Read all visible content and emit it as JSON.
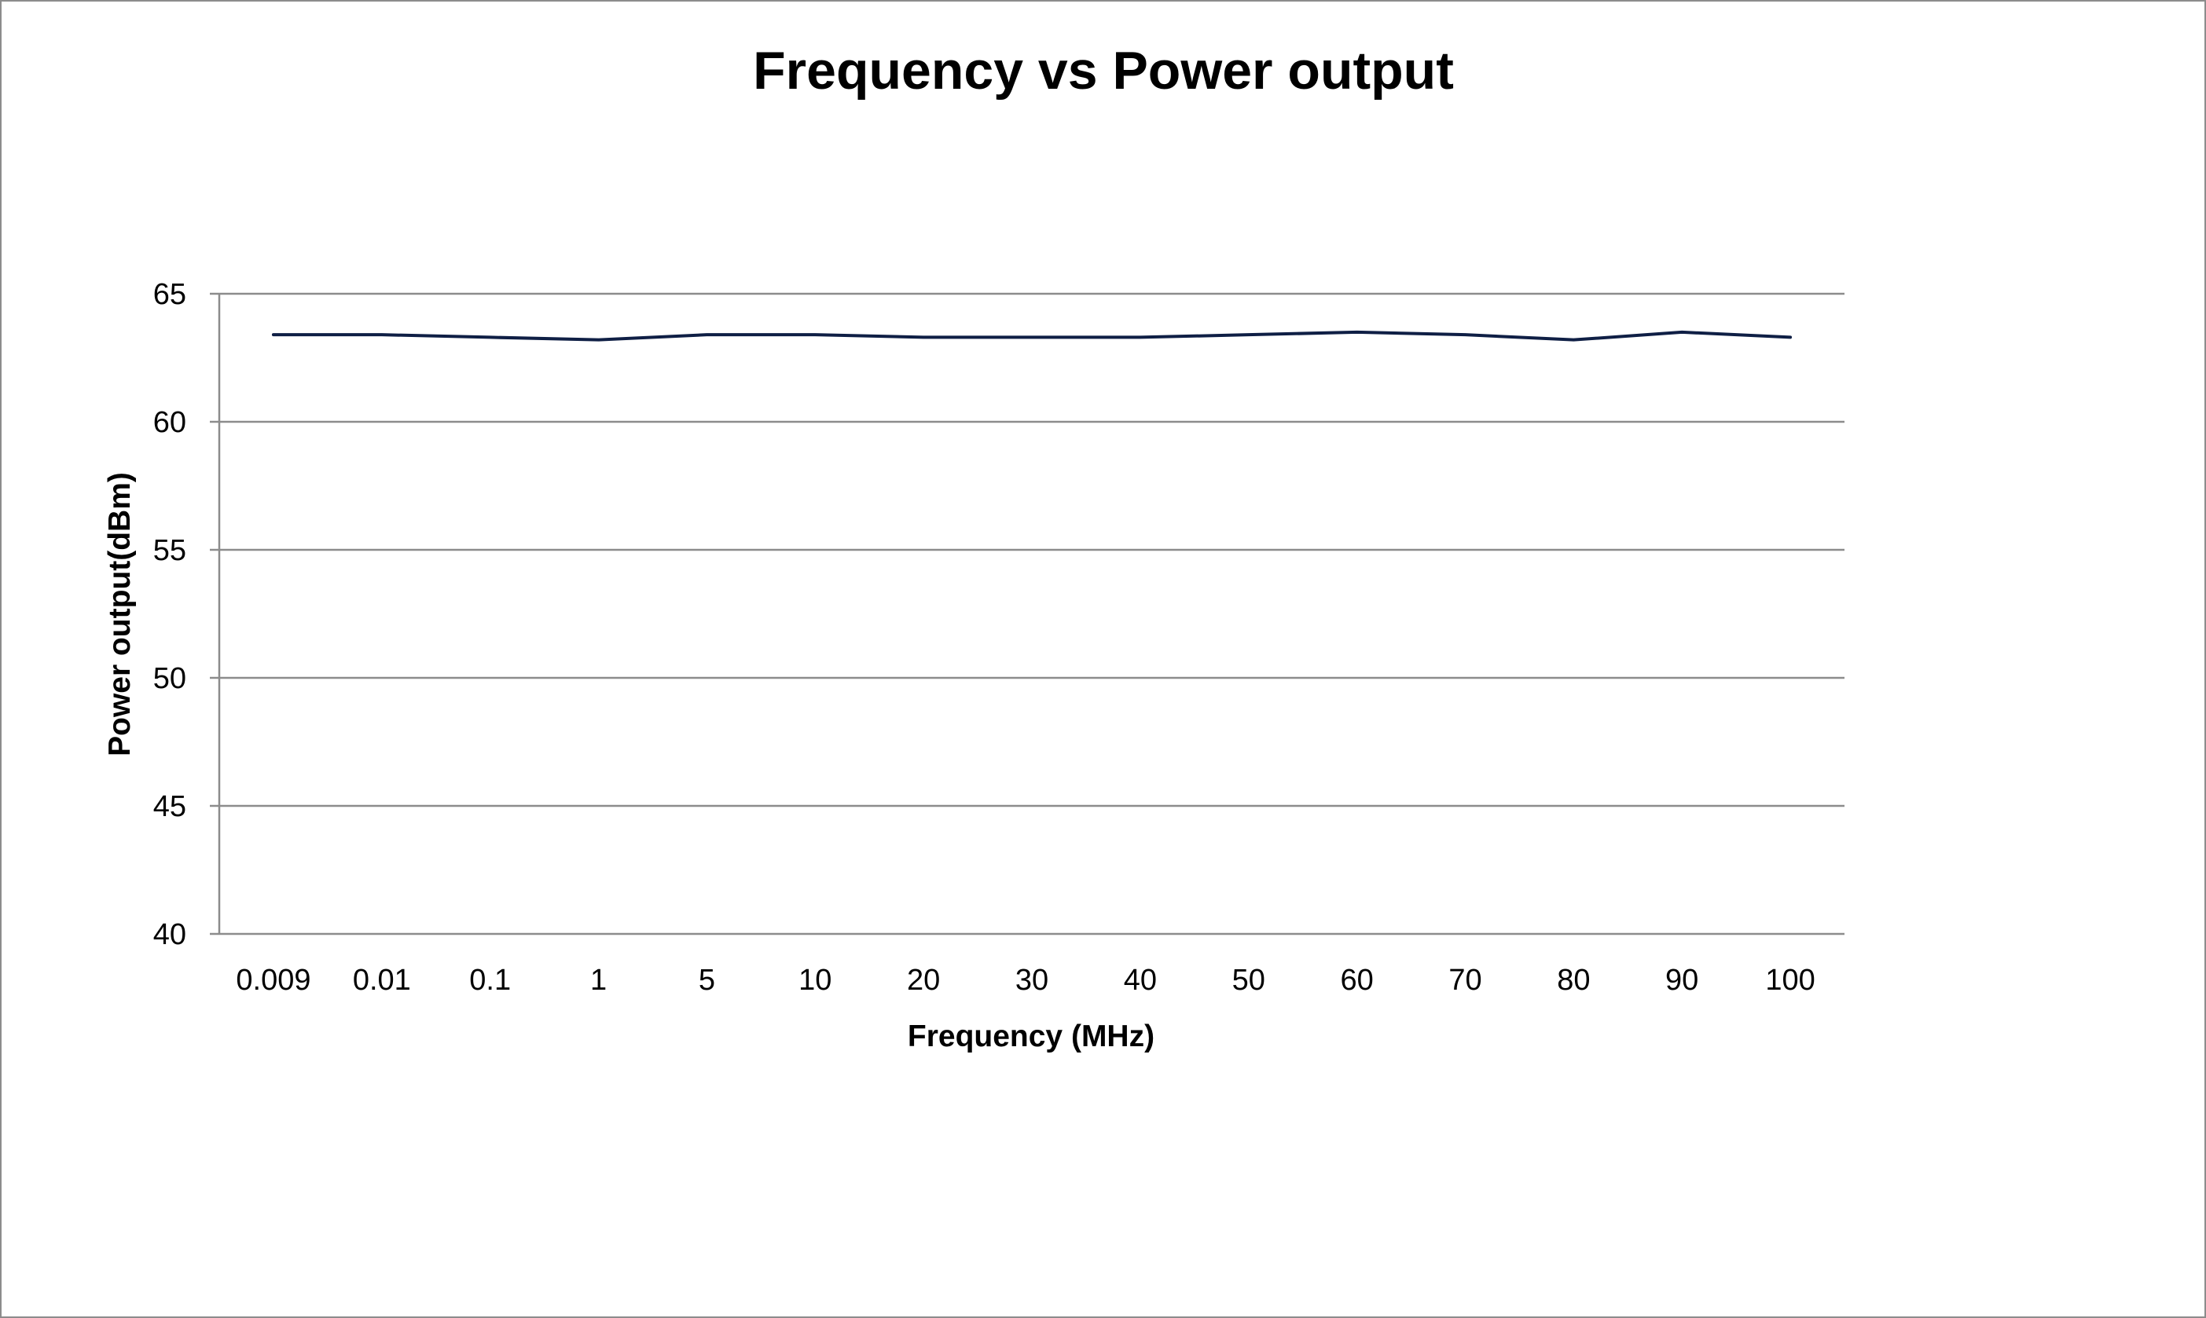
{
  "chart_data": {
    "type": "line",
    "title": "Frequency vs Power output",
    "xlabel": "Frequency (MHz)",
    "ylabel": "Power output(dBm)",
    "categories": [
      "0.009",
      "0.01",
      "0.1",
      "1",
      "5",
      "10",
      "20",
      "30",
      "40",
      "50",
      "60",
      "70",
      "80",
      "90",
      "100"
    ],
    "series": [
      {
        "values": [
          63.4,
          63.4,
          63.3,
          63.2,
          63.4,
          63.4,
          63.3,
          63.3,
          63.3,
          63.4,
          63.5,
          63.4,
          63.2,
          63.5,
          63.3
        ],
        "color": "#0f1f45"
      }
    ],
    "ylim": [
      40,
      65
    ],
    "yticks": [
      40,
      45,
      50,
      55,
      60,
      65
    ],
    "grid": true,
    "legend": "none",
    "colors": {
      "gridline": "#8c8c8c",
      "axis": "#8c8c8c",
      "border": "#8c8c8c"
    }
  }
}
